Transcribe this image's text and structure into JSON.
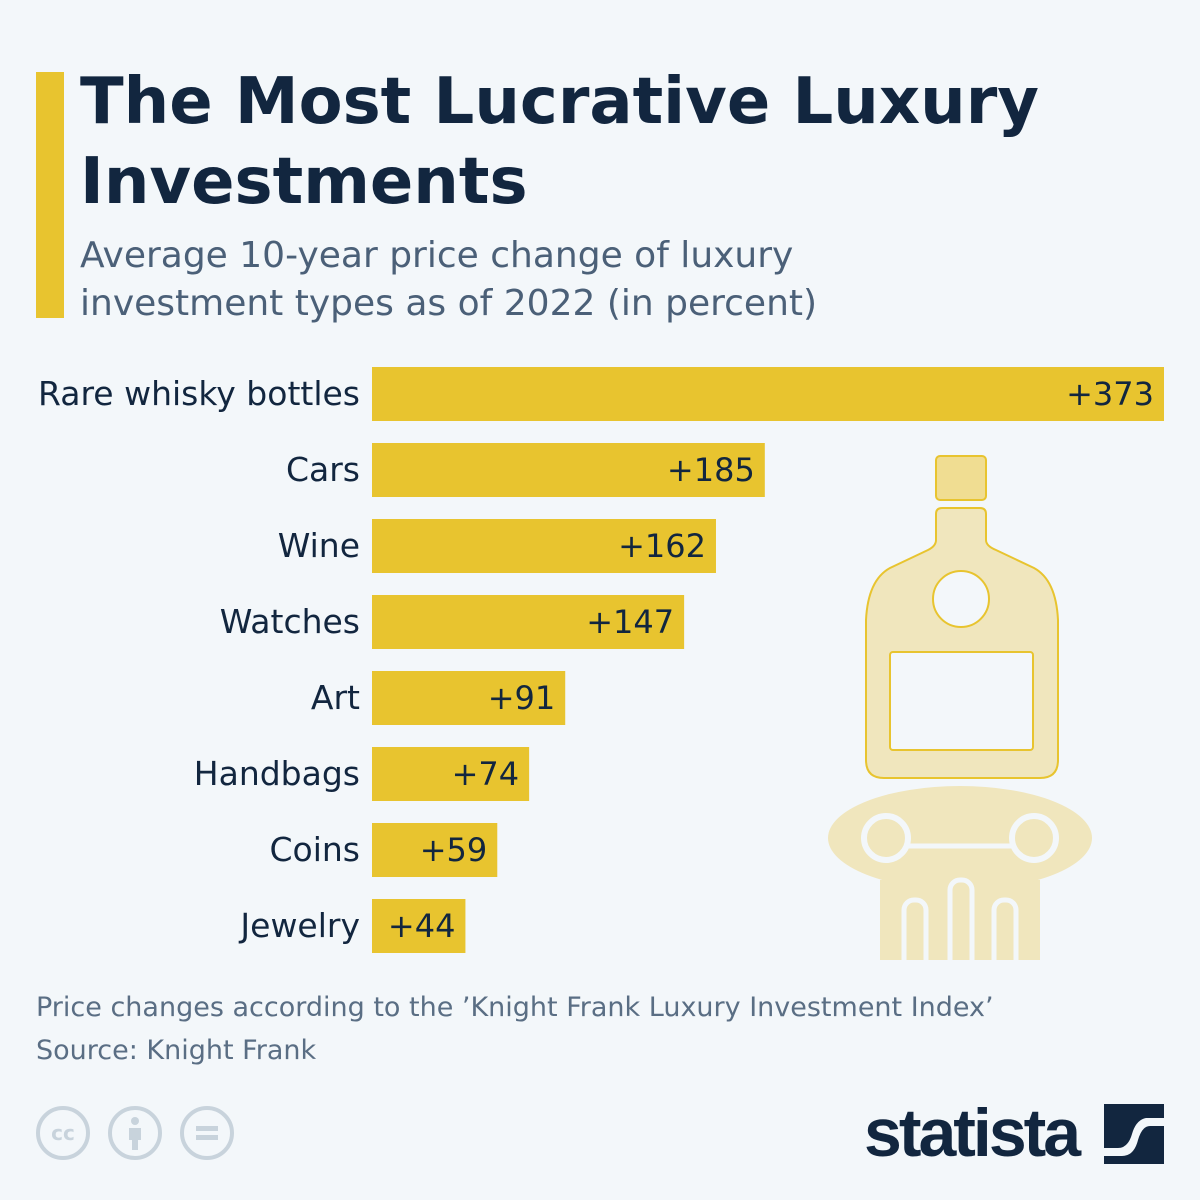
{
  "title": "The Most Lucrative Luxury Investments",
  "subtitle": "Average 10-year price change of luxury investment types as of 2022 (in percent)",
  "colors": {
    "bar": "#e8c42f",
    "text": "#12263f",
    "accent": "#e8c42f",
    "illustration": "#f0e6bd"
  },
  "chart_data": {
    "type": "bar",
    "orientation": "horizontal",
    "categories": [
      "Rare whisky bottles",
      "Cars",
      "Wine",
      "Watches",
      "Art",
      "Handbags",
      "Coins",
      "Jewelry"
    ],
    "values": [
      373,
      185,
      162,
      147,
      91,
      74,
      59,
      44
    ],
    "data_labels": [
      "+373",
      "+185",
      "+162",
      "+147",
      "+91",
      "+74",
      "+59",
      "+44"
    ],
    "xlim": [
      0,
      373
    ],
    "grid": false
  },
  "footer": {
    "note": "Price changes according to the ’Knight Frank Luxury Investment Index’",
    "source": "Source: Knight Frank",
    "brand": "statista",
    "license_icons": [
      "cc-icon",
      "attribution-icon",
      "no-derivatives-icon"
    ],
    "cc_text": "cc"
  }
}
